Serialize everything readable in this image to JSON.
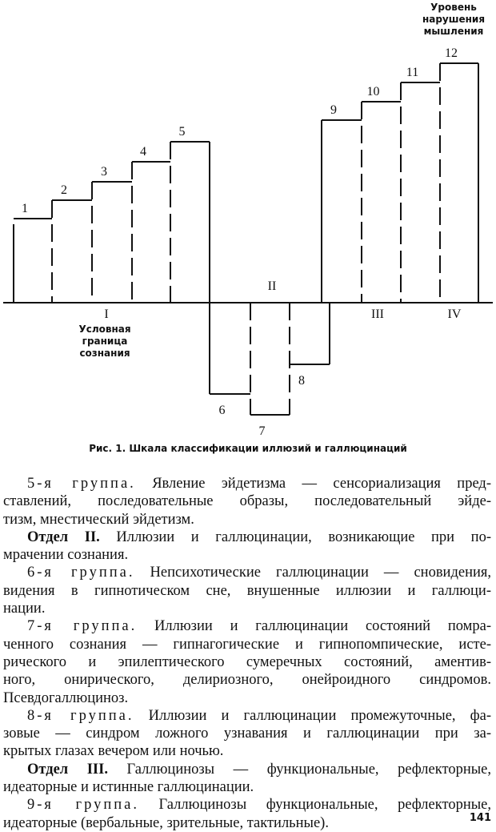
{
  "figure": {
    "top_label": [
      "Уровень",
      "нарушения",
      "мышления"
    ],
    "step_labels": [
      "1",
      "2",
      "3",
      "4",
      "5",
      "6",
      "7",
      "8",
      "9",
      "10",
      "11",
      "12"
    ],
    "section_labels": [
      "I",
      "II",
      "III",
      "IV"
    ],
    "boundary_label": [
      "Условная",
      "граница",
      "сознания"
    ],
    "caption": "Рис. 1. Шкала классификации иллюзий и галлюцинаций"
  },
  "paragraphs": [
    {
      "lead": "5-я группа.",
      "lead_style": "spaced",
      "lines": [
        "Явление эйдетизма — сенсориализация пред-",
        "ставлений, последовательные образы, последовательный эйде-",
        "тизм, мнестический эйдетизм."
      ]
    },
    {
      "lead": "Отдел II.",
      "lead_style": "bold",
      "lines": [
        "Иллюзии и галлюцинации, возникающие при по-",
        "мрачении сознания."
      ]
    },
    {
      "lead": "6-я группа.",
      "lead_style": "spaced",
      "lines": [
        "Непсихотические галлюцинации — сновидения,",
        "видения в гипнотическом сне, внушенные иллюзии и галлюци-",
        "нации."
      ]
    },
    {
      "lead": "7-я группа.",
      "lead_style": "spaced",
      "lines": [
        "Иллюзии и галлюцинации состояний помра-",
        "ченного сознания — гипнагогические и гипнопомпические, исте-",
        "рического и эпилептического сумеречных состояний, аментив-",
        "ного, онирического, делириозного, онейроидного синдромов.",
        "Псевдогаллюциноз."
      ]
    },
    {
      "lead": "8-я группа.",
      "lead_style": "spaced",
      "lines": [
        "Иллюзии и галлюцинации промежуточные, фа-",
        "зовые — синдром ложного узнавания и галлюцинации при за-",
        "крытых глазах вечером или ночью."
      ]
    },
    {
      "lead": "Отдел III.",
      "lead_style": "bold",
      "lines": [
        "Галлюцинозы — функциональные, рефлекторные,",
        "идеаторные и истинные галлюцинации."
      ]
    },
    {
      "lead": "9-я группа.",
      "lead_style": "spaced",
      "lines": [
        "Галлюцинозы функциональные, рефлекторные,",
        "идеаторные (вербальные, зрительные, тактильные)."
      ]
    }
  ],
  "page_number": "141"
}
